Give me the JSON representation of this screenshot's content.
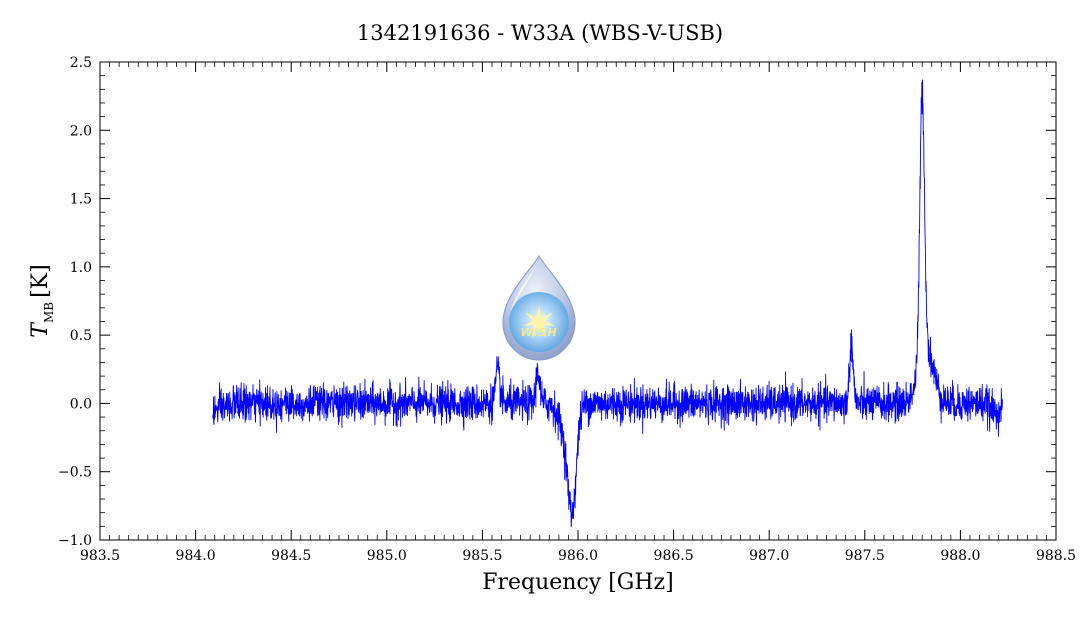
{
  "chart_data": {
    "type": "line",
    "title": "1342191636 - W33A (WBS-V-USB)",
    "xlabel": "Frequency [GHz]",
    "ylabel_main": "T",
    "ylabel_sub": "MB",
    "ylabel_unit": "[K]",
    "xlim": [
      983.5,
      988.5
    ],
    "ylim": [
      -1.0,
      2.5
    ],
    "xticks": [
      "983.5",
      "984.0",
      "984.5",
      "985.0",
      "985.5",
      "986.0",
      "986.5",
      "987.0",
      "987.5",
      "988.0",
      "988.5"
    ],
    "yticks": [
      "−1.0",
      "−0.5",
      "0.0",
      "0.5",
      "1.0",
      "1.5",
      "2.0",
      "2.5"
    ],
    "grid": false,
    "series": [
      {
        "color": "#0000ff",
        "x_range": [
          984.09,
          988.22
        ],
        "noise_rms": 0.065,
        "features": [
          {
            "center": 985.58,
            "amplitude": 0.22,
            "width": 0.012
          },
          {
            "center": 985.79,
            "amplitude": 0.24,
            "width": 0.01
          },
          {
            "center": 985.97,
            "amplitude": -0.72,
            "width": 0.022
          },
          {
            "center": 985.93,
            "amplitude": -0.2,
            "width": 0.03
          },
          {
            "center": 987.43,
            "amplitude": 0.42,
            "width": 0.01
          },
          {
            "center": 987.8,
            "amplitude": 1.95,
            "width": 0.012
          },
          {
            "center": 987.82,
            "amplitude": 0.4,
            "width": 0.04
          }
        ],
        "notable_points": [
          {
            "x": 987.8,
            "y": 2.12
          },
          {
            "x": 985.97,
            "y": -0.84
          },
          {
            "x": 987.43,
            "y": 0.54
          }
        ]
      }
    ],
    "logo": {
      "name": "wish-logo-icon",
      "text": "WISH"
    }
  }
}
